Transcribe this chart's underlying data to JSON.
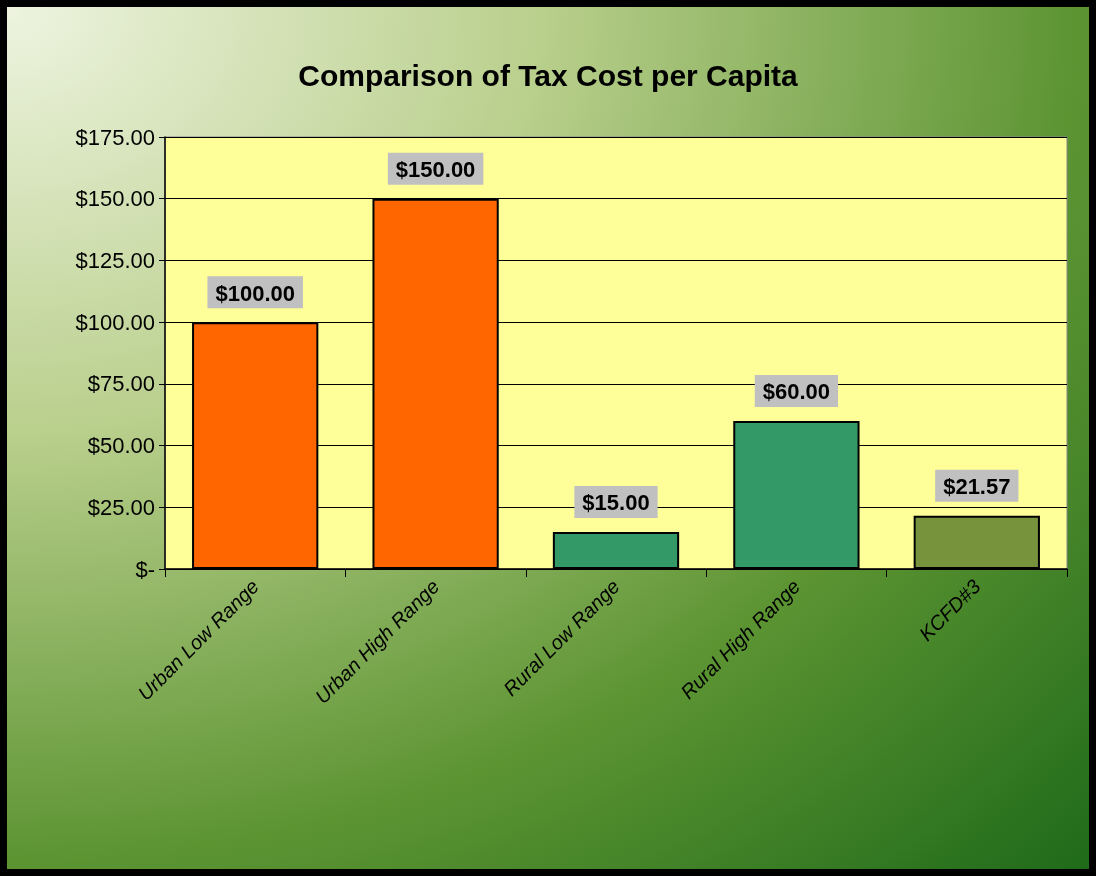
{
  "chart_data": {
    "type": "bar",
    "title": "Comparison of Tax Cost per Capita",
    "categories": [
      "Urban Low Range",
      "Urban High Range",
      "Rural Low Range",
      "Rural High Range",
      "KCFD#3"
    ],
    "values": [
      100,
      150,
      15,
      60,
      21.57
    ],
    "colors": [
      "#ff6600",
      "#ff6600",
      "#339966",
      "#339966",
      "#77933c"
    ],
    "value_labels": [
      "$100.00",
      "$150.00",
      "$15.00",
      "$60.00",
      "$21.57"
    ],
    "ylim": [
      0,
      175
    ],
    "yticks": [
      {
        "value": 0,
        "label": "$-"
      },
      {
        "value": 25,
        "label": "$25.00"
      },
      {
        "value": 50,
        "label": "$50.00"
      },
      {
        "value": 75,
        "label": "$75.00"
      },
      {
        "value": 100,
        "label": "$100.00"
      },
      {
        "value": 125,
        "label": "$125.00"
      },
      {
        "value": 150,
        "label": "$150.00"
      },
      {
        "value": 175,
        "label": "$175.00"
      }
    ],
    "grid": "y"
  }
}
